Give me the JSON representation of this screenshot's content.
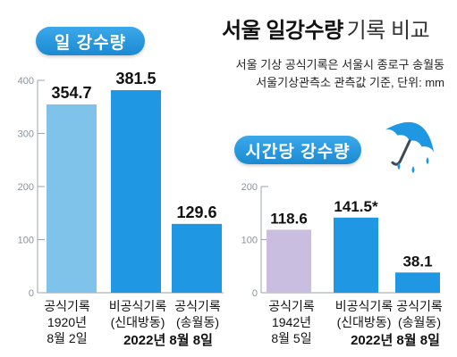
{
  "header": {
    "title": "서울 일강수량",
    "title_suffix": "기록 비교",
    "note_line1": "서울 기상 공식기록은 서울시 종로구 송월동",
    "note_line2": "서울기상관측소 관측값 기준, 단위: mm"
  },
  "panels": {
    "daily_label": "일 강수량",
    "hourly_label": "시간당 강수량",
    "umbrella_icon": "umbrella-rain-icon"
  },
  "captions": {
    "daily": {
      "bar1_line1": "공식기록",
      "bar1_line2": "1920년",
      "bar1_line3": "8월 2일",
      "bar2_line1": "비공식기록",
      "bar2_line2": "(신대방동)",
      "bar3_line1": "공식기록",
      "bar3_line2": "(송월동)",
      "shared_date": "2022년 8월 8일"
    },
    "hourly": {
      "bar1_line1": "공식기록",
      "bar1_line2": "1942년",
      "bar1_line3": "8월 5일",
      "bar2_line1": "비공식기록",
      "bar2_line2": "(신대방동)",
      "bar3_line1": "공식기록",
      "bar3_line2": "(송월동)",
      "shared_date": "2022년 8월 8일"
    }
  },
  "colors": {
    "light_blue": "#7fc2ea",
    "blue": "#1f97e3",
    "purple": "#c9bde0",
    "axis": "#9aa4ab",
    "grid": "#d5d9dd",
    "pill": "#2a9be0"
  },
  "chart_data": [
    {
      "type": "bar",
      "title": "일 강수량",
      "categories": [
        "공식기록 1920년 8월 2일",
        "비공식기록 (신대방동)",
        "공식기록 (송월동)"
      ],
      "values": [
        354.7,
        381.5,
        129.6
      ],
      "value_labels": [
        "354.7",
        "381.5",
        "129.6"
      ],
      "ylim": [
        0,
        400
      ],
      "yticks": [
        0,
        100,
        200,
        300,
        400
      ],
      "unit": "mm",
      "grid": true
    },
    {
      "type": "bar",
      "title": "시간당 강수량",
      "categories": [
        "공식기록 1942년 8월 5일",
        "비공식기록 (신대방동)",
        "공식기록 (송월동)"
      ],
      "values": [
        118.6,
        141.5,
        38.1
      ],
      "value_labels": [
        "118.6",
        "141.5*",
        "38.1"
      ],
      "ylim": [
        0,
        200
      ],
      "yticks": [
        0,
        100,
        200
      ],
      "unit": "mm",
      "grid": true
    }
  ]
}
